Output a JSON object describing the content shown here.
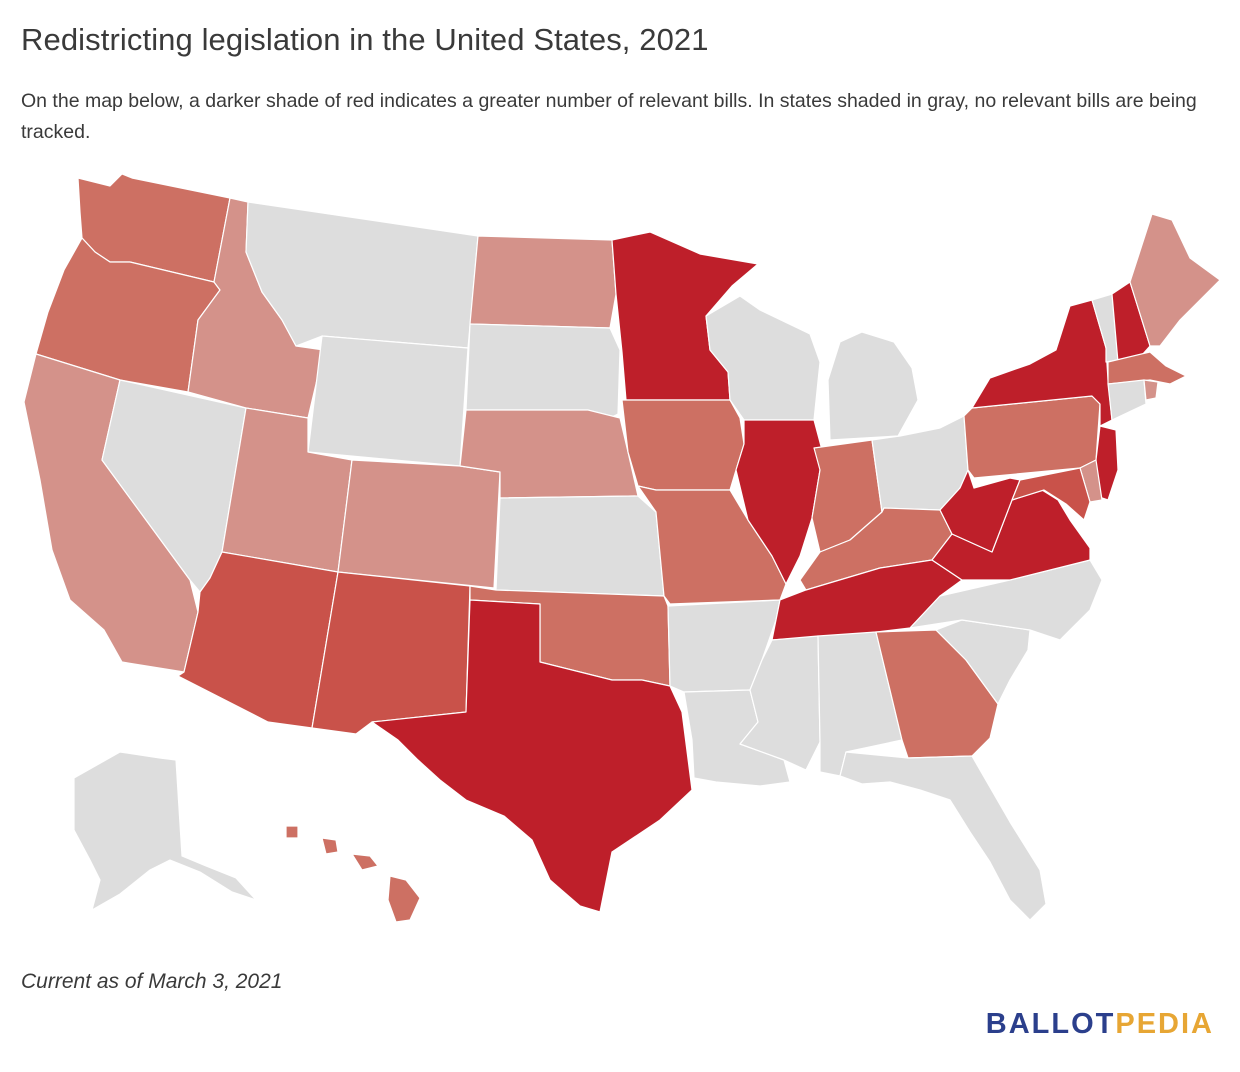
{
  "title": "Redistricting legislation in the United States, 2021",
  "subtitle": "On the map below, a darker shade of red indicates a greater number of relevant bills. In states shaded in gray, no relevant bills are being tracked.",
  "footnote": "Current as of March 3, 2021",
  "brand": {
    "part1": "BALLOT",
    "part2": "PEDIA",
    "color1": "#2b3f8c",
    "color2": "#e7a634"
  },
  "colors": {
    "none": "#dddddd",
    "level1": "#d4928a",
    "level2": "#cd7063",
    "level3": "#c9524a",
    "level4": "#be1f2a"
  },
  "states": [
    {
      "name": "Washington",
      "level": 2
    },
    {
      "name": "Oregon",
      "level": 2
    },
    {
      "name": "California",
      "level": 1
    },
    {
      "name": "Nevada",
      "level": 0
    },
    {
      "name": "Idaho",
      "level": 1
    },
    {
      "name": "Montana",
      "level": 0
    },
    {
      "name": "Wyoming",
      "level": 0
    },
    {
      "name": "Utah",
      "level": 1
    },
    {
      "name": "Arizona",
      "level": 3
    },
    {
      "name": "Colorado",
      "level": 1
    },
    {
      "name": "New Mexico",
      "level": 3
    },
    {
      "name": "North Dakota",
      "level": 1
    },
    {
      "name": "South Dakota",
      "level": 0
    },
    {
      "name": "Nebraska",
      "level": 1
    },
    {
      "name": "Kansas",
      "level": 0
    },
    {
      "name": "Oklahoma",
      "level": 2
    },
    {
      "name": "Texas",
      "level": 4
    },
    {
      "name": "Minnesota",
      "level": 4
    },
    {
      "name": "Iowa",
      "level": 2
    },
    {
      "name": "Missouri",
      "level": 2
    },
    {
      "name": "Arkansas",
      "level": 0
    },
    {
      "name": "Louisiana",
      "level": 0
    },
    {
      "name": "Wisconsin",
      "level": 0
    },
    {
      "name": "Illinois",
      "level": 4
    },
    {
      "name": "Michigan",
      "level": 0
    },
    {
      "name": "Indiana",
      "level": 2
    },
    {
      "name": "Ohio",
      "level": 0
    },
    {
      "name": "Kentucky",
      "level": 2
    },
    {
      "name": "Tennessee",
      "level": 4
    },
    {
      "name": "Mississippi",
      "level": 0
    },
    {
      "name": "Alabama",
      "level": 0
    },
    {
      "name": "Georgia",
      "level": 2
    },
    {
      "name": "Florida",
      "level": 0
    },
    {
      "name": "South Carolina",
      "level": 0
    },
    {
      "name": "North Carolina",
      "level": 0
    },
    {
      "name": "Virginia",
      "level": 4
    },
    {
      "name": "West Virginia",
      "level": 4
    },
    {
      "name": "Pennsylvania",
      "level": 2
    },
    {
      "name": "New York",
      "level": 4
    },
    {
      "name": "Vermont",
      "level": 0
    },
    {
      "name": "New Hampshire",
      "level": 4
    },
    {
      "name": "Maine",
      "level": 1
    },
    {
      "name": "Massachusetts",
      "level": 2
    },
    {
      "name": "Rhode Island",
      "level": 1
    },
    {
      "name": "Connecticut",
      "level": 0
    },
    {
      "name": "New Jersey",
      "level": 4
    },
    {
      "name": "Delaware",
      "level": 1
    },
    {
      "name": "Maryland",
      "level": 3
    },
    {
      "name": "Alaska",
      "level": 0
    },
    {
      "name": "Hawaii",
      "level": 2
    }
  ]
}
